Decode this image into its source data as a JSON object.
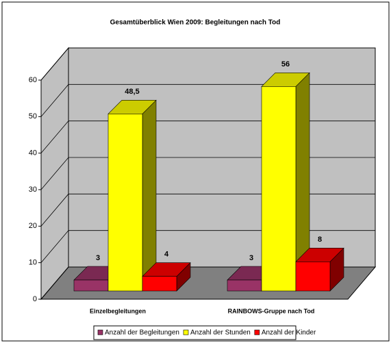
{
  "chart_data": {
    "type": "bar3d",
    "title": "Gesamtüberblick Wien 2009: Begleitungen nach Tod",
    "categories": [
      "Einzelbegleitungen",
      "RAINBOWS-Gruppe nach Tod"
    ],
    "series": [
      {
        "name": "Anzahl der Begleitungen",
        "color": "#993366",
        "values": [
          3,
          3
        ]
      },
      {
        "name": "Anzahl der Stunden",
        "color": "#ffff00",
        "values": [
          48.5,
          56
        ],
        "value_labels": [
          "48,5",
          "56"
        ]
      },
      {
        "name": "Anzahl der Kinder",
        "color": "#ff0000",
        "values": [
          4,
          8
        ]
      }
    ],
    "ylim": [
      0,
      60
    ],
    "yticks": [
      0,
      10,
      20,
      30,
      40,
      50,
      60
    ],
    "grid": true,
    "legend": "bottom"
  }
}
